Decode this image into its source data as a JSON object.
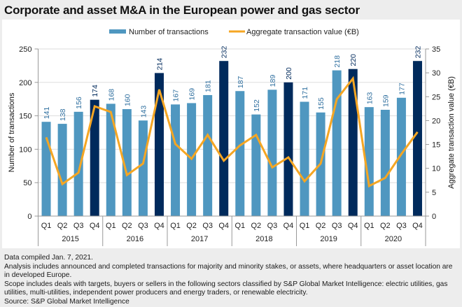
{
  "chart_data": {
    "type": "bar",
    "title": "Corporate and asset M&A in the European power and gas sector",
    "categories": [
      "Q1",
      "Q2",
      "Q3",
      "Q4",
      "Q1",
      "Q2",
      "Q3",
      "Q4",
      "Q1",
      "Q2",
      "Q3",
      "Q4",
      "Q1",
      "Q2",
      "Q3",
      "Q4",
      "Q1",
      "Q2",
      "Q3",
      "Q4",
      "Q1",
      "Q2",
      "Q3",
      "Q4"
    ],
    "groups": [
      {
        "label": "2015",
        "quarters": 4
      },
      {
        "label": "2016",
        "quarters": 4
      },
      {
        "label": "2017",
        "quarters": 4
      },
      {
        "label": "2018",
        "quarters": 4
      },
      {
        "label": "2019",
        "quarters": 4
      },
      {
        "label": "2020",
        "quarters": 4
      }
    ],
    "series": [
      {
        "name": "Number of transactions",
        "type": "bar",
        "axis": "left",
        "values": [
          141,
          138,
          156,
          174,
          168,
          160,
          143,
          214,
          167,
          169,
          181,
          232,
          187,
          152,
          189,
          200,
          171,
          155,
          218,
          220,
          163,
          159,
          177,
          232
        ],
        "highlight_q4": true
      },
      {
        "name": "Aggregate transaction value (€B)",
        "type": "line",
        "axis": "right",
        "values": [
          16.5,
          6.7,
          9.1,
          23.0,
          21.8,
          8.6,
          11.0,
          26.5,
          15.1,
          12.0,
          17.0,
          11.6,
          14.8,
          17.0,
          10.2,
          12.3,
          7.3,
          11.0,
          24.5,
          28.8,
          6.3,
          8.0,
          13.0,
          17.6
        ]
      }
    ],
    "ylabel": "Number of transactions",
    "ylim": [
      0,
      250
    ],
    "yticks": [
      0,
      50,
      100,
      150,
      200,
      250
    ],
    "y2label": "Aggregate transaction value (€B)",
    "y2lim": [
      0,
      35
    ],
    "y2ticks": [
      0,
      5,
      10,
      15,
      20,
      25,
      30,
      35
    ],
    "grid": true,
    "legend": "top-center",
    "colors": {
      "bar": "#4f97c0",
      "bar_q4": "#002a5c",
      "line": "#f5a623",
      "label": "#2f6f9f",
      "label_q4": "#002a5c"
    }
  },
  "legend": {
    "bars": "Number of transactions",
    "line": "Aggregate transaction value (€B)"
  },
  "notes": [
    "Data compiled Jan. 7, 2021.",
    "Analysis includes announced and completed transactions for majority and minority stakes, or assets, where headquarters or asset location are in developed Europe.",
    "Scope includes deals with targets, buyers or sellers in the following sectors classified by S&P Global Market Intelligence: electric utilities, gas utilities, multi-utilities, independent power producers and energy traders, or renewable electricity.",
    "Source: S&P Global Market Intelligence"
  ]
}
